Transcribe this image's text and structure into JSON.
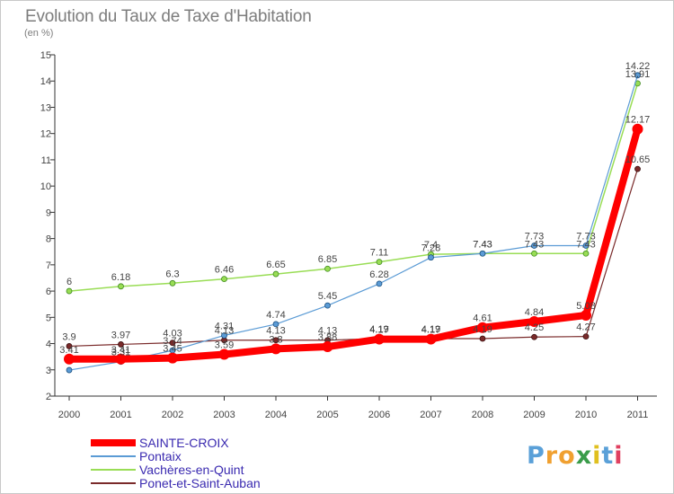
{
  "title": "Evolution du Taux de Taxe d'Habitation",
  "unit": "(en %)",
  "brand": {
    "text": "Proxiti",
    "colors": [
      "#5aa0d8",
      "#f0a030",
      "#f0a030",
      "#3a9c4a",
      "#e0c020",
      "#5aa0d8",
      "#e04060"
    ]
  },
  "chart_data": {
    "type": "line",
    "x": [
      2000,
      2001,
      2002,
      2003,
      2004,
      2005,
      2006,
      2007,
      2008,
      2009,
      2010,
      2011
    ],
    "ylim": [
      2,
      15
    ],
    "yticks": [
      2,
      3,
      4,
      5,
      6,
      7,
      8,
      9,
      10,
      11,
      12,
      13,
      14,
      15
    ],
    "grid": false,
    "legend_position": "bottom-left",
    "series": [
      {
        "name": "SAINTE-CROIX",
        "color": "#ff0000",
        "values": [
          3.41,
          3.41,
          3.45,
          3.59,
          3.8,
          3.88,
          4.17,
          4.17,
          4.61,
          4.84,
          5.08,
          12.17
        ],
        "labels": [
          "3.41",
          "3.41",
          "3.45",
          "3.59",
          "3.8",
          "3.88",
          "4.17",
          "4.17",
          "4.61",
          "4.84",
          "5.08",
          "12.17"
        ]
      },
      {
        "name": "Pontaix",
        "color": "#5b9bd5",
        "values": [
          2.99,
          3.31,
          3.74,
          4.31,
          4.74,
          5.45,
          6.28,
          7.28,
          7.43,
          7.73,
          7.73,
          14.22
        ],
        "labels": [
          "",
          "3.31",
          "3.74",
          "4.31",
          "4.74",
          "5.45",
          "6.28",
          "7.28",
          "7.43",
          "7.73",
          "7.73",
          "14.22"
        ]
      },
      {
        "name": "Vachères-en-Quint",
        "color": "#99dd55",
        "values": [
          6,
          6.18,
          6.3,
          6.46,
          6.65,
          6.85,
          7.11,
          7.4,
          7.43,
          7.43,
          7.43,
          13.91
        ],
        "labels": [
          "6",
          "6.18",
          "6.3",
          "6.46",
          "6.65",
          "6.85",
          "7.11",
          "7.4",
          "7.43",
          "7.43",
          "7.43",
          "13.91"
        ]
      },
      {
        "name": "Ponet-et-Saint-Auban",
        "color": "#7a2a2a",
        "values": [
          3.9,
          3.97,
          4.03,
          4.13,
          4.13,
          4.13,
          4.19,
          4.19,
          4.19,
          4.25,
          4.27,
          10.65
        ],
        "labels": [
          "3.9",
          "3.97",
          "4.03",
          "4.13",
          "4.13",
          "4.13",
          "4.19",
          "4.19",
          "4.19",
          "4.25",
          "4.27",
          "10.65"
        ]
      }
    ]
  }
}
